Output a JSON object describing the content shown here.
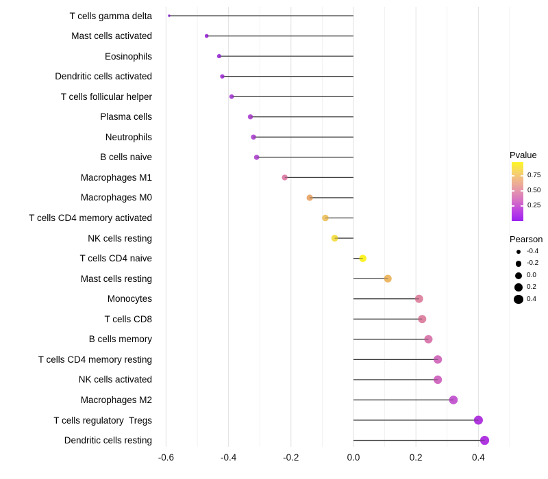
{
  "colors": {
    "background": "#ffffff",
    "stem": "#3e3e3e",
    "gridline_major": "#e4e4e4",
    "gridline_minor": "#efefef",
    "axis_text": "#111111",
    "legend_dot": "#000000"
  },
  "chart_data": {
    "type": "lollipop",
    "title": "",
    "xlabel": "",
    "ylabel": "",
    "baseline": 0.0,
    "x_axis": {
      "tick_labels": [
        "-0.6",
        "-0.4",
        "-0.2",
        "0.0",
        "0.2",
        "0.4"
      ],
      "tick_values": [
        -0.6,
        -0.4,
        -0.2,
        0.0,
        0.2,
        0.4
      ],
      "range": [
        -0.63,
        0.51
      ],
      "gridline_step": 0.1,
      "grid": "vertical-only"
    },
    "points": [
      {
        "label": "T cells gamma delta",
        "pearson": -0.59,
        "color": "#9230d4"
      },
      {
        "label": "Mast cells activated",
        "pearson": -0.47,
        "color": "#9c2ed8"
      },
      {
        "label": "Eosinophils",
        "pearson": -0.43,
        "color": "#a136da"
      },
      {
        "label": "Dendritic cells activated",
        "pearson": -0.42,
        "color": "#a63ad8"
      },
      {
        "label": "T cells follicular helper",
        "pearson": -0.39,
        "color": "#aa40d6"
      },
      {
        "label": "Plasma cells",
        "pearson": -0.33,
        "color": "#af48d2"
      },
      {
        "label": "Neutrophils",
        "pearson": -0.32,
        "color": "#b04ad1"
      },
      {
        "label": "B cells naive",
        "pearson": -0.31,
        "color": "#b14cd0"
      },
      {
        "label": "Macrophages M1",
        "pearson": -0.22,
        "color": "#db7da6"
      },
      {
        "label": "Macrophages M0",
        "pearson": -0.14,
        "color": "#eaa76d"
      },
      {
        "label": "T cells CD4 memory activated",
        "pearson": -0.09,
        "color": "#eec263"
      },
      {
        "label": "NK cells resting",
        "pearson": -0.06,
        "color": "#f4dd44"
      },
      {
        "label": "T cells CD4 naive",
        "pearson": 0.03,
        "color": "#fbf31c"
      },
      {
        "label": "Mast cells resting",
        "pearson": 0.11,
        "color": "#ecb55f"
      },
      {
        "label": "Monocytes",
        "pearson": 0.21,
        "color": "#de829e"
      },
      {
        "label": "T cells CD8",
        "pearson": 0.22,
        "color": "#dd7f9f"
      },
      {
        "label": "B cells memory",
        "pearson": 0.24,
        "color": "#d877ab"
      },
      {
        "label": "T cells CD4 memory resting",
        "pearson": 0.27,
        "color": "#d269bb"
      },
      {
        "label": "NK cells activated",
        "pearson": 0.27,
        "color": "#d065bf"
      },
      {
        "label": "Macrophages M2",
        "pearson": 0.32,
        "color": "#c253cf"
      },
      {
        "label": "T cells regulatory  Tregs",
        "pearson": 0.4,
        "color": "#ad30dc"
      },
      {
        "label": "Dendritic cells resting",
        "pearson": 0.42,
        "color": "#ab2de0"
      }
    ],
    "legend_pvalue": {
      "title": "Pvalue",
      "tick_labels": [
        "0.75",
        "0.50",
        "0.25"
      ],
      "gradient_top_to_bottom": [
        "#fdf622",
        "#f7d468",
        "#efb290",
        "#e392ae",
        "#d56ec6",
        "#bb41e2",
        "#9d23f2"
      ]
    },
    "legend_pearson": {
      "title": "Pearson",
      "size_values": [
        -0.4,
        -0.2,
        0.0,
        0.2,
        0.4
      ],
      "size_labels": [
        "-0.4",
        "-0.2",
        "0.0",
        "0.2",
        "0.4"
      ]
    }
  }
}
